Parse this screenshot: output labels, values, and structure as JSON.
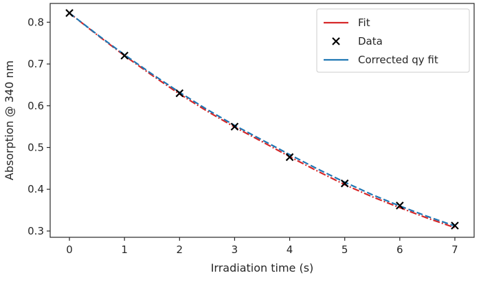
{
  "chart_data": {
    "type": "line",
    "title": "",
    "xlabel": "Irradiation time (s)",
    "ylabel": "Absorption  @ 340 nm",
    "xlim": [
      -0.35,
      7.35
    ],
    "ylim": [
      0.285,
      0.845
    ],
    "xticks": [
      0,
      1,
      2,
      3,
      4,
      5,
      6,
      7
    ],
    "yticks": [
      0.3,
      0.4,
      0.5,
      0.6,
      0.7,
      0.8
    ],
    "grid": false,
    "legend_position": "top-right",
    "series": [
      {
        "name": "Fit",
        "kind": "line",
        "color": "#d62728",
        "style": "dashdot",
        "x": [
          0,
          0.5,
          1,
          1.5,
          2,
          2.5,
          3,
          3.5,
          4,
          4.5,
          5,
          5.5,
          6,
          6.5,
          7
        ],
        "y": [
          0.822,
          0.77,
          0.72,
          0.673,
          0.628,
          0.587,
          0.549,
          0.514,
          0.478,
          0.444,
          0.411,
          0.382,
          0.356,
          0.331,
          0.308
        ]
      },
      {
        "name": "Data",
        "kind": "scatter",
        "marker": "x",
        "color": "#000000",
        "x": [
          0,
          1,
          2,
          3,
          4,
          5,
          6,
          7
        ],
        "y": [
          0.822,
          0.72,
          0.63,
          0.55,
          0.477,
          0.414,
          0.361,
          0.313
        ]
      },
      {
        "name": "Corrected qy fit",
        "kind": "line",
        "color": "#1f77b4",
        "style": "dashed",
        "x": [
          0,
          0.5,
          1,
          1.5,
          2,
          2.5,
          3,
          3.5,
          4,
          4.5,
          5,
          5.5,
          6,
          6.5,
          7
        ],
        "y": [
          0.822,
          0.771,
          0.722,
          0.676,
          0.632,
          0.591,
          0.553,
          0.518,
          0.483,
          0.449,
          0.417,
          0.387,
          0.36,
          0.335,
          0.312
        ]
      }
    ]
  }
}
